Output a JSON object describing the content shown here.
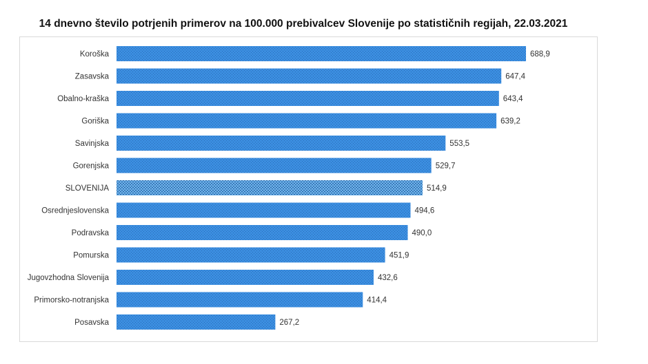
{
  "chart_data": {
    "type": "bar",
    "orientation": "horizontal",
    "title": "14 dnevno število potrjenih primerov na 100.000 prebivalcev Slovenije po statističnih regijah, 22.03.2021",
    "categories": [
      "Koroška",
      "Zasavska",
      "Obalno-kraška",
      "Goriška",
      "Savinjska",
      "Gorenjska",
      "SLOVENIJA",
      "Osrednjeslovenska",
      "Podravska",
      "Pomurska",
      "Jugovzhodna Slovenija",
      "Primorsko-notranjska",
      "Posavska"
    ],
    "values": [
      688.9,
      647.4,
      643.4,
      639.2,
      553.5,
      529.7,
      514.9,
      494.6,
      490.0,
      451.9,
      432.6,
      414.4,
      267.2
    ],
    "value_labels": [
      "688,9",
      "647,4",
      "643,4",
      "639,2",
      "553,5",
      "529,7",
      "514,9",
      "494,6",
      "490,0",
      "451,9",
      "432,6",
      "414,4",
      "267,2"
    ],
    "highlight_category": "SLOVENIJA",
    "xlim": [
      0,
      700
    ],
    "grid": false,
    "legend": "none",
    "colors": {
      "bar": "#3b8ee0",
      "bar_dark": "#2b6cb8",
      "highlight": "#6aaee6",
      "highlight_dark": "#1e5a9e"
    }
  }
}
